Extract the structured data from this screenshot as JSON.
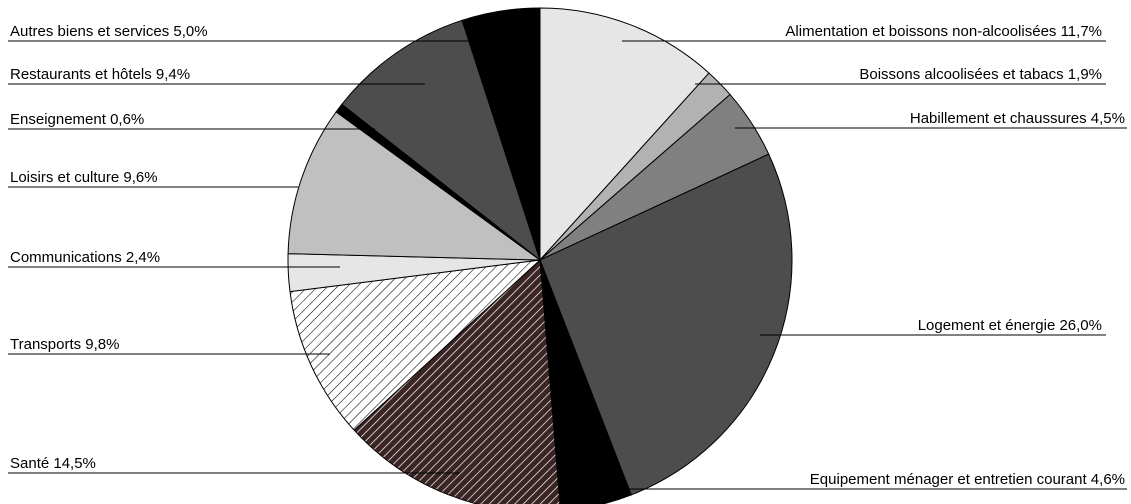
{
  "chart_data": {
    "type": "pie",
    "title": "",
    "slices": [
      {
        "label": "Alimentation et boissons non-alcoolisées 11,7%",
        "value": 11.7,
        "fill": "#e6e6e6",
        "pattern": "none"
      },
      {
        "label": "Boissons alcoolisées et tabacs 1,9%",
        "value": 1.9,
        "fill": "#b2b2b2",
        "pattern": "none"
      },
      {
        "label": "Habillement et chaussures 4,5%",
        "value": 4.5,
        "fill": "#808080",
        "pattern": "none"
      },
      {
        "label": "Logement et énergie 26,0%",
        "value": 26.0,
        "fill": "#4d4d4d",
        "pattern": "none"
      },
      {
        "label": "Equipement ménager et entretien courant 4,6%",
        "value": 4.6,
        "fill": "#000000",
        "pattern": "none"
      },
      {
        "label": "Santé 14,5%",
        "value": 14.5,
        "fill": "#3a2424",
        "pattern": "diagonal-light"
      },
      {
        "label": "Transports 9,8%",
        "value": 9.8,
        "fill": "#ffffff",
        "pattern": "diagonal-dark"
      },
      {
        "label": "Communications 2,4%",
        "value": 2.4,
        "fill": "#e6e6e6",
        "pattern": "none"
      },
      {
        "label": "Loisirs et culture 9,6%",
        "value": 9.6,
        "fill": "#c0c0c0",
        "pattern": "none"
      },
      {
        "label": "Enseignement 0,6%",
        "value": 0.6,
        "fill": "#000000",
        "pattern": "none"
      },
      {
        "label": "Restaurants et hôtels 9,4%",
        "value": 9.4,
        "fill": "#4d4d4d",
        "pattern": "none"
      },
      {
        "label": "Autres biens et services 5,0%",
        "value": 5.0,
        "fill": "#000000",
        "pattern": "none"
      }
    ],
    "start_angle": "12 o'clock",
    "direction": "clockwise",
    "legend": "none"
  }
}
